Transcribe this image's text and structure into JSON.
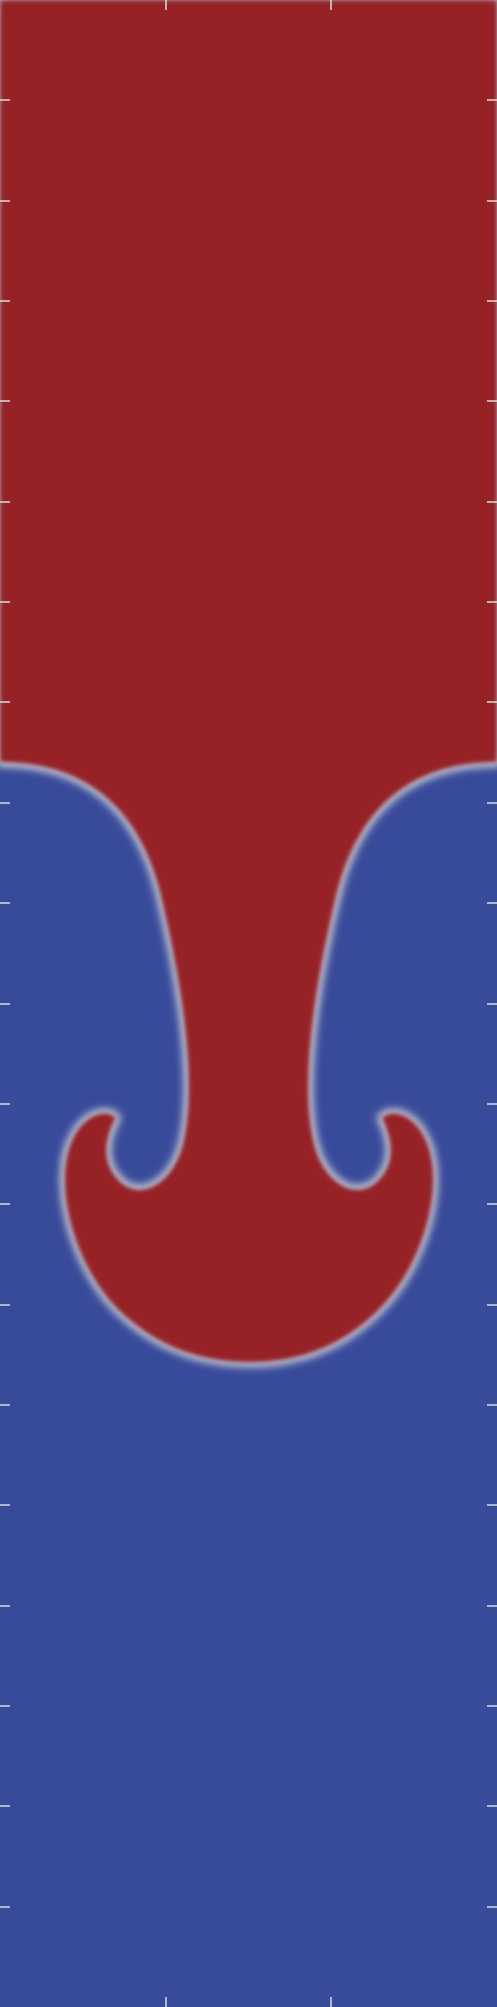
{
  "visualization": {
    "colors": {
      "heavy_fluid": "#962126",
      "light_fluid": "#384a9a",
      "interface": "#dcdcdc",
      "tick": "#e6e6e6"
    },
    "ticks": {
      "side_count": 19,
      "top_count": 2,
      "bottom_count": 2
    }
  }
}
